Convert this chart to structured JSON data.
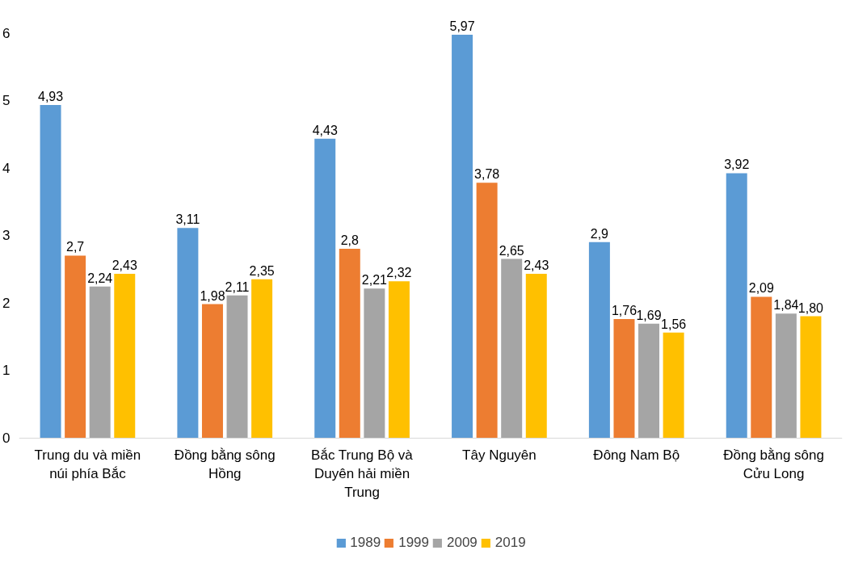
{
  "chart_data": {
    "type": "bar",
    "categories": [
      "Trung du và miền núi phía Bắc",
      "Đồng bằng sông Hồng",
      "Bắc Trung Bộ và Duyên hải miền Trung",
      "Tây Nguyên",
      "Đông Nam Bộ",
      "Đồng bằng sông Cửu Long"
    ],
    "series": [
      {
        "name": "1989",
        "color": "#5b9bd5",
        "values": [
          4.93,
          3.11,
          4.43,
          5.97,
          2.9,
          3.92
        ],
        "value_labels": [
          "4,93",
          "3,11",
          "4,43",
          "5,97",
          "2,9",
          "3,92"
        ]
      },
      {
        "name": "1999",
        "color": "#ed7d31",
        "values": [
          2.7,
          1.98,
          2.8,
          3.78,
          1.76,
          2.09
        ],
        "value_labels": [
          "2,7",
          "1,98",
          "2,8",
          "3,78",
          "1,76",
          "2,09"
        ]
      },
      {
        "name": "2009",
        "color": "#a5a5a5",
        "values": [
          2.24,
          2.11,
          2.21,
          2.65,
          1.69,
          1.84
        ],
        "value_labels": [
          "2,24",
          "2,11",
          "2,21",
          "2,65",
          "1,69",
          "1,84"
        ]
      },
      {
        "name": "2019",
        "color": "#ffc000",
        "values": [
          2.43,
          2.35,
          2.32,
          2.43,
          1.56,
          1.8
        ],
        "value_labels": [
          "2,43",
          "2,35",
          "2,32",
          "2,43",
          "1,56",
          "1,80"
        ]
      }
    ],
    "ylim": [
      0,
      6
    ],
    "yticks": [
      0,
      1,
      2,
      3,
      4,
      5,
      6
    ],
    "grid": false,
    "legend": "bottom"
  }
}
